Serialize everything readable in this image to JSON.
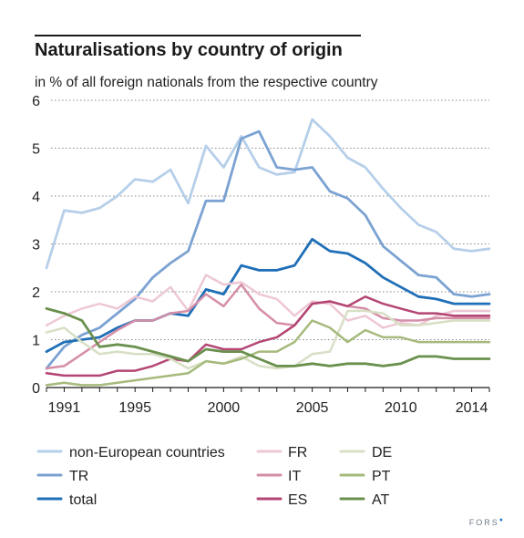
{
  "chart_data": {
    "type": "line",
    "title": "Naturalisations by country of origin",
    "subtitle": "in % of all foreign nationals from the respective country",
    "x": [
      1990,
      1991,
      1992,
      1993,
      1994,
      1995,
      1996,
      1997,
      1998,
      1999,
      2000,
      2001,
      2002,
      2003,
      2004,
      2005,
      2006,
      2007,
      2008,
      2009,
      2010,
      2011,
      2012,
      2013,
      2014,
      2015
    ],
    "x_ticks": [
      1991,
      1995,
      2000,
      2005,
      2010,
      2014
    ],
    "y_ticks": [
      0,
      1,
      2,
      3,
      4,
      5,
      6
    ],
    "ylim": [
      0,
      6
    ],
    "xlabel": "",
    "ylabel": "",
    "grid": "horizontal dotted",
    "legend_position": "bottom",
    "series": [
      {
        "name": "non-European countries",
        "color": "#b6cfe9",
        "width": 2.8,
        "values": [
          2.5,
          3.7,
          3.65,
          3.75,
          4.0,
          4.35,
          4.3,
          4.55,
          3.85,
          5.05,
          4.6,
          5.25,
          4.6,
          4.45,
          4.5,
          5.6,
          5.25,
          4.8,
          4.6,
          4.15,
          3.75,
          3.4,
          3.25,
          2.9,
          2.85,
          2.9
        ]
      },
      {
        "name": "TR",
        "color": "#7ba2d2",
        "width": 2.8,
        "values": [
          0.4,
          0.85,
          1.1,
          1.25,
          1.55,
          1.85,
          2.3,
          2.6,
          2.85,
          3.9,
          3.9,
          5.2,
          5.35,
          4.6,
          4.55,
          4.6,
          4.1,
          3.95,
          3.6,
          2.95,
          2.65,
          2.35,
          2.3,
          1.95,
          1.9,
          1.95
        ]
      },
      {
        "name": "total",
        "color": "#1f6fb8",
        "width": 2.8,
        "values": [
          0.75,
          0.95,
          1.0,
          1.05,
          1.25,
          1.4,
          1.4,
          1.55,
          1.5,
          2.05,
          1.95,
          2.55,
          2.45,
          2.45,
          2.55,
          3.1,
          2.85,
          2.8,
          2.6,
          2.3,
          2.1,
          1.9,
          1.85,
          1.75,
          1.75,
          1.75
        ]
      },
      {
        "name": "FR",
        "color": "#edc8d4",
        "width": 2.5,
        "values": [
          1.3,
          1.5,
          1.65,
          1.75,
          1.65,
          1.9,
          1.8,
          2.1,
          1.6,
          2.35,
          2.15,
          2.2,
          1.95,
          1.85,
          1.5,
          1.8,
          1.75,
          1.4,
          1.5,
          1.25,
          1.35,
          1.3,
          1.5,
          1.6,
          1.6,
          1.6
        ]
      },
      {
        "name": "IT",
        "color": "#d58ea8",
        "width": 2.5,
        "values": [
          0.4,
          0.45,
          0.7,
          0.95,
          1.2,
          1.4,
          1.4,
          1.55,
          1.6,
          1.95,
          1.7,
          2.15,
          1.65,
          1.35,
          1.3,
          1.75,
          1.8,
          1.7,
          1.65,
          1.45,
          1.4,
          1.4,
          1.45,
          1.45,
          1.45,
          1.45
        ]
      },
      {
        "name": "ES",
        "color": "#b44574",
        "width": 2.5,
        "values": [
          0.3,
          0.25,
          0.25,
          0.25,
          0.35,
          0.35,
          0.45,
          0.6,
          0.55,
          0.9,
          0.8,
          0.8,
          0.95,
          1.05,
          1.3,
          1.75,
          1.8,
          1.7,
          1.9,
          1.75,
          1.65,
          1.55,
          1.55,
          1.5,
          1.5,
          1.5
        ]
      },
      {
        "name": "DE",
        "color": "#d7dfc5",
        "width": 2.5,
        "values": [
          1.15,
          1.25,
          0.95,
          0.7,
          0.75,
          0.7,
          0.7,
          0.6,
          0.4,
          0.55,
          0.5,
          0.65,
          0.45,
          0.4,
          0.45,
          0.7,
          0.75,
          1.6,
          1.6,
          1.55,
          1.3,
          1.3,
          1.35,
          1.4,
          1.4,
          1.4
        ]
      },
      {
        "name": "PT",
        "color": "#a6ba7c",
        "width": 2.5,
        "values": [
          0.05,
          0.1,
          0.05,
          0.05,
          0.1,
          0.15,
          0.2,
          0.25,
          0.3,
          0.55,
          0.5,
          0.6,
          0.75,
          0.75,
          0.95,
          1.4,
          1.25,
          0.95,
          1.2,
          1.05,
          1.05,
          0.95,
          0.95,
          0.95,
          0.95,
          0.95
        ]
      },
      {
        "name": "AT",
        "color": "#6a904d",
        "width": 2.8,
        "values": [
          1.65,
          1.55,
          1.4,
          0.85,
          0.9,
          0.85,
          0.75,
          0.65,
          0.55,
          0.8,
          0.75,
          0.75,
          0.6,
          0.45,
          0.45,
          0.5,
          0.45,
          0.5,
          0.5,
          0.45,
          0.5,
          0.65,
          0.65,
          0.6,
          0.6,
          0.6
        ]
      }
    ]
  },
  "brand": {
    "text": "FORS",
    "mark": "●"
  }
}
